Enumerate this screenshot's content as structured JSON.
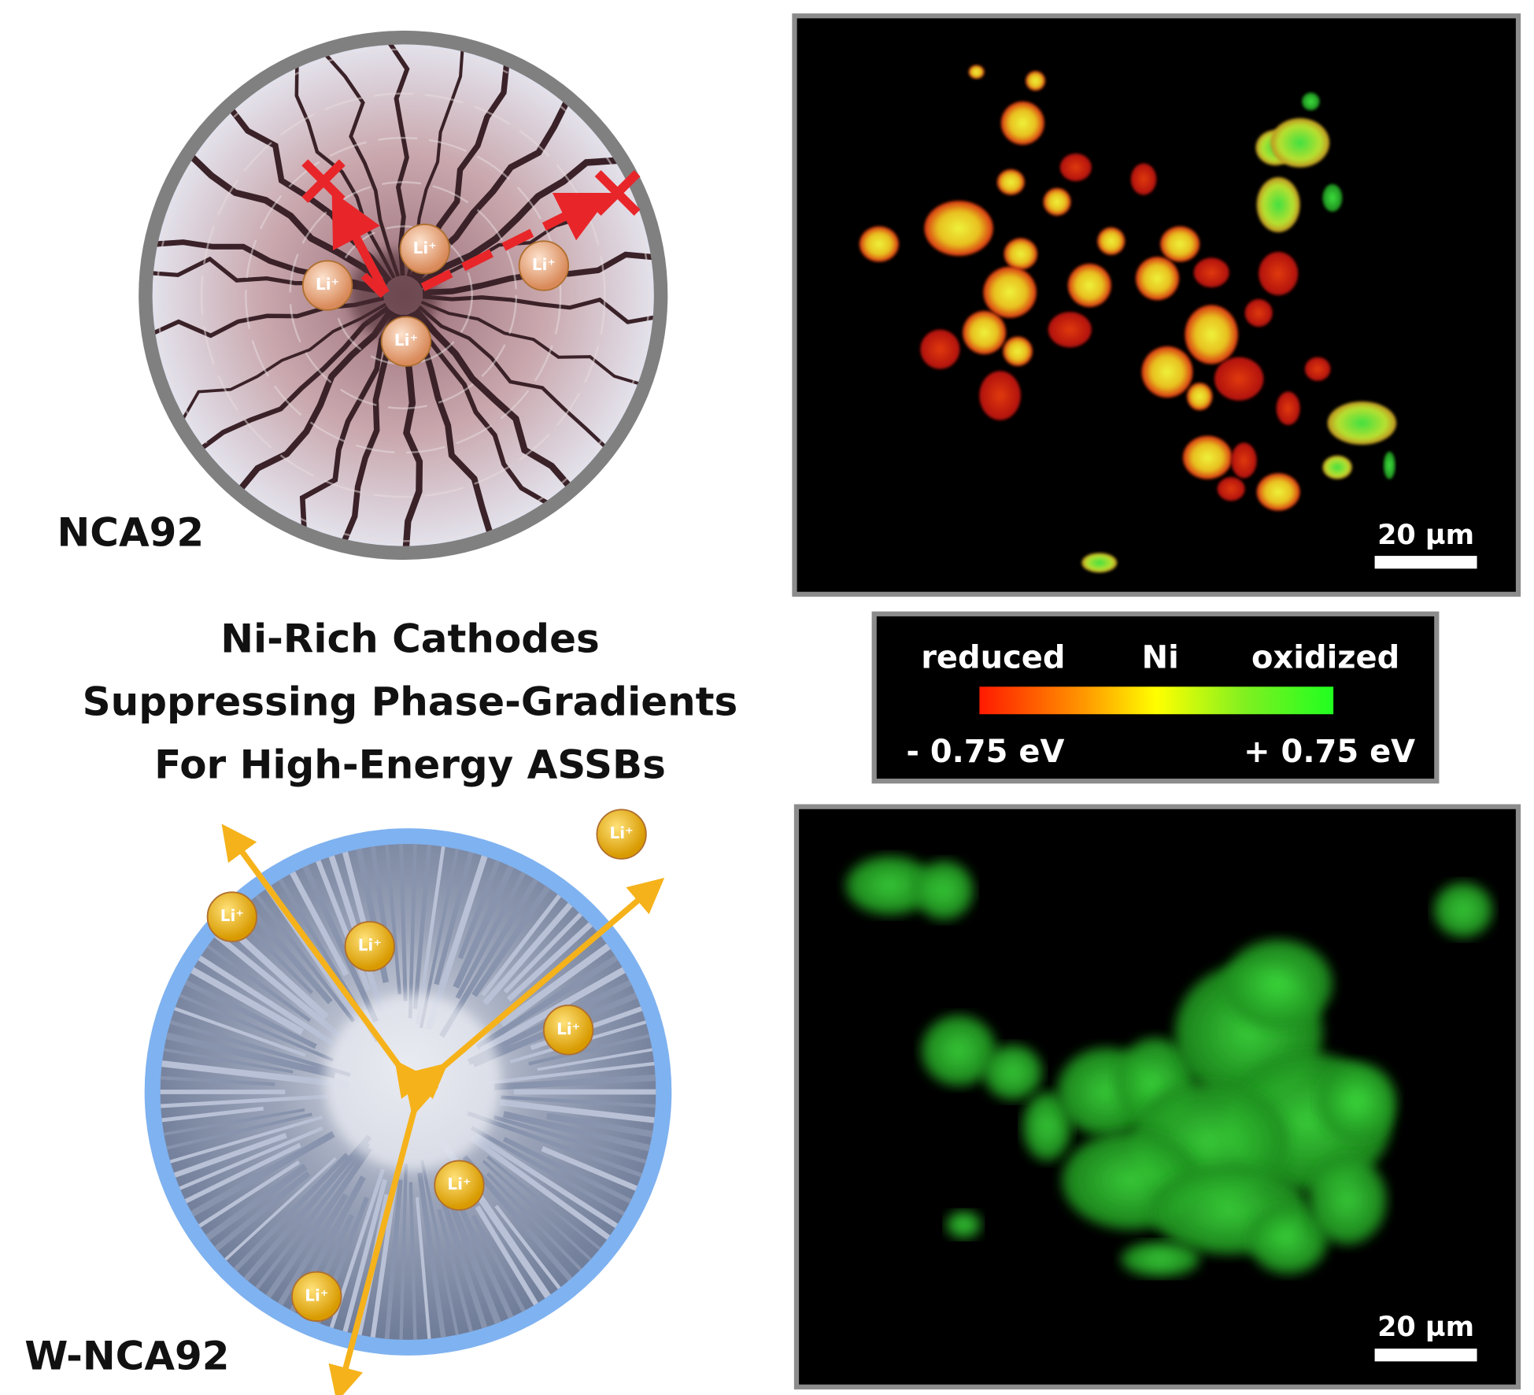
{
  "top_panel": {
    "label": "NCA92",
    "ions": [
      "Li⁺",
      "Li⁺",
      "Li⁺",
      "Li⁺"
    ]
  },
  "title": {
    "lines": [
      "Ni-Rich Cathodes",
      "Suppressing Phase-Gradients",
      "For High-Energy ASSBs"
    ]
  },
  "bottom_panel": {
    "label": "W-NCA92",
    "ions": [
      "Li⁺",
      "Li⁺",
      "Li⁺",
      "Li⁺",
      "Li⁺",
      "Li⁺"
    ]
  },
  "top_image": {
    "scale_bar": "20 µm"
  },
  "bottom_image": {
    "scale_bar": "20 µm"
  },
  "colorbar": {
    "left_label": "reduced",
    "center_label": "Ni",
    "right_label": "oxidized",
    "min_label": "- 0.75 eV",
    "max_label": "+ 0.75 eV"
  }
}
